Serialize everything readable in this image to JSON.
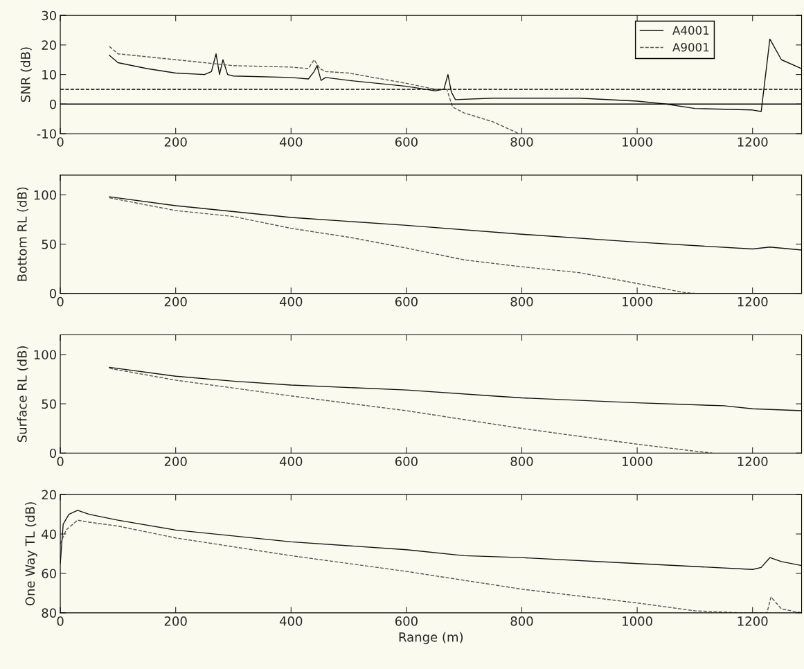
{
  "chart_data": [
    {
      "type": "line",
      "ylabel": "SNR (dB)",
      "xlim": [
        0,
        1285
      ],
      "xticks": [
        0,
        200,
        400,
        600,
        800,
        1000,
        1200
      ],
      "ylim": [
        -10,
        30
      ],
      "yticks": [
        -10,
        0,
        10,
        20,
        30
      ],
      "legend": "top right",
      "grid": false,
      "ref_lines": [
        {
          "axis": "y",
          "value": 5,
          "color": "#000000",
          "line_style": "dashed"
        },
        {
          "axis": "y",
          "value": 0,
          "color": "#000000",
          "line_style": "solid"
        }
      ],
      "series": [
        {
          "name": "A4001",
          "color": "#111111",
          "line_style": "solid",
          "x": [
            85,
            100,
            150,
            200,
            250,
            262,
            270,
            276,
            282,
            290,
            300,
            400,
            430,
            440,
            445,
            452,
            460,
            500,
            550,
            600,
            650,
            665,
            672,
            678,
            685,
            750,
            900,
            1000,
            1050,
            1100,
            1200,
            1215,
            1230,
            1250,
            1285
          ],
          "values": [
            16.5,
            14,
            12,
            10.5,
            10,
            11,
            17,
            10,
            15,
            10,
            9.5,
            9,
            8.5,
            11,
            13,
            8,
            9,
            8,
            7,
            6,
            4.5,
            5,
            10,
            4,
            1.5,
            2,
            2,
            1,
            0,
            -1.5,
            -2,
            -2.5,
            22,
            15,
            12
          ]
        },
        {
          "name": "A9001",
          "color": "#555555",
          "line_style": "dashed",
          "x": [
            85,
            100,
            150,
            200,
            300,
            400,
            430,
            440,
            450,
            460,
            500,
            600,
            650,
            670,
            680,
            700,
            750,
            795
          ],
          "values": [
            19.5,
            17,
            16,
            15,
            13,
            12.5,
            12,
            15,
            12,
            11,
            10.5,
            7,
            5,
            5,
            -1,
            -3,
            -6,
            -10
          ]
        }
      ]
    },
    {
      "type": "line",
      "ylabel": "Bottom RL (dB)",
      "xlim": [
        0,
        1285
      ],
      "xticks": [
        0,
        200,
        400,
        600,
        800,
        1000,
        1200
      ],
      "ylim": [
        0,
        120
      ],
      "yticks": [
        0,
        50,
        100
      ],
      "grid": false,
      "series": [
        {
          "color": "#111111",
          "line_style": "solid",
          "x": [
            85,
            200,
            400,
            600,
            800,
            1000,
            1200,
            1230,
            1285
          ],
          "values": [
            98,
            89,
            77,
            69,
            60,
            52,
            45,
            47,
            44
          ]
        },
        {
          "color": "#555555",
          "line_style": "dashed",
          "x": [
            85,
            200,
            300,
            400,
            500,
            600,
            700,
            800,
            900,
            1000,
            1080,
            1100
          ],
          "values": [
            97,
            84,
            78,
            66,
            57,
            46,
            34,
            27,
            21,
            10,
            1,
            0
          ]
        }
      ]
    },
    {
      "type": "line",
      "ylabel": "Surface RL (dB)",
      "xlim": [
        0,
        1285
      ],
      "xticks": [
        0,
        200,
        400,
        600,
        800,
        1000,
        1200
      ],
      "ylim": [
        0,
        120
      ],
      "yticks": [
        0,
        50,
        100
      ],
      "grid": false,
      "series": [
        {
          "color": "#111111",
          "line_style": "solid",
          "x": [
            85,
            200,
            300,
            400,
            600,
            750,
            800,
            1000,
            1150,
            1200,
            1285
          ],
          "values": [
            87,
            78,
            73,
            69,
            64,
            58,
            56,
            51,
            48,
            45,
            43
          ]
        },
        {
          "color": "#555555",
          "line_style": "dashed",
          "x": [
            85,
            200,
            400,
            600,
            800,
            1000,
            1100,
            1130
          ],
          "values": [
            86,
            74,
            58,
            43,
            25,
            9,
            2,
            0
          ]
        }
      ]
    },
    {
      "type": "line",
      "ylabel": "One Way TL (dB)",
      "xlabel": "Range (m)",
      "xlim": [
        0,
        1285
      ],
      "xticks": [
        0,
        200,
        400,
        600,
        800,
        1000,
        1200
      ],
      "ylim": [
        80,
        20
      ],
      "yticks": [
        20,
        40,
        60,
        80
      ],
      "grid": false,
      "series": [
        {
          "color": "#111111",
          "line_style": "solid",
          "x": [
            0,
            5,
            15,
            30,
            50,
            100,
            200,
            400,
            600,
            700,
            800,
            1000,
            1200,
            1215,
            1230,
            1250,
            1285
          ],
          "values": [
            55,
            35,
            30,
            28,
            30,
            33,
            38,
            44,
            48,
            51,
            52,
            55,
            58,
            57,
            52,
            54,
            56
          ]
        },
        {
          "color": "#555555",
          "line_style": "dashed",
          "x": [
            0,
            10,
            30,
            50,
            100,
            200,
            400,
            600,
            800,
            1000,
            1100,
            1180,
            1225,
            1232,
            1250,
            1285
          ],
          "values": [
            45,
            38,
            33,
            34,
            36,
            42,
            51,
            59,
            68,
            75,
            79,
            80,
            80,
            72,
            78,
            80
          ]
        }
      ]
    }
  ]
}
